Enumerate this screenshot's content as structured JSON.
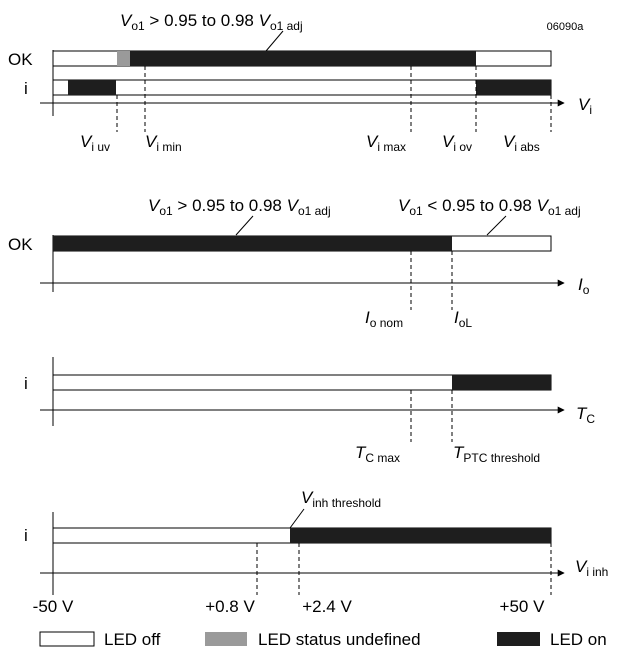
{
  "figure_id": "06090a",
  "colors": {
    "led_on": "#1e1e1e",
    "led_undefined": "#9a9a9a",
    "led_off": "#ffffff",
    "line": "#000000"
  },
  "panel1": {
    "title": {
      "main": "V",
      "s1": "o1",
      "mid": " > 0.95 to 0.98 ",
      "main2": "V",
      "s2": "o1 adj"
    },
    "row_ok": "OK",
    "row_i": "i",
    "axis": {
      "main": "V",
      "sub": "i"
    },
    "markers": [
      {
        "main": "V",
        "sub": "i uv"
      },
      {
        "main": "V",
        "sub": "i min"
      },
      {
        "main": "V",
        "sub": "i max"
      },
      {
        "main": "V",
        "sub": "i ov"
      },
      {
        "main": "V",
        "sub": "i abs"
      }
    ]
  },
  "panel2": {
    "title_left": {
      "main": "V",
      "s1": "o1",
      "mid": " > 0.95 to 0.98 ",
      "main2": "V",
      "s2": "o1 adj"
    },
    "title_right": {
      "main": "V",
      "s1": "o1",
      "mid": " < 0.95 to 0.98 ",
      "main2": "V",
      "s2": "o1 adj"
    },
    "row_ok": "OK",
    "axis": {
      "main": "I",
      "sub": "o"
    },
    "markers": [
      {
        "main": "I",
        "sub": "o nom"
      },
      {
        "main": "I",
        "sub": "oL"
      }
    ]
  },
  "panel3": {
    "row_i": "i",
    "axis": {
      "main": "T",
      "sub": "C"
    },
    "markers": [
      {
        "main": "T",
        "sub": "C max"
      },
      {
        "main": "T",
        "sub": "PTC threshold"
      }
    ]
  },
  "panel4": {
    "row_i": "i",
    "threshold": {
      "main": "V",
      "sub": "inh threshold"
    },
    "axis": {
      "main": "V",
      "sub": "i inh"
    },
    "ticks": [
      "-50 V",
      "+0.8 V",
      "+2.4 V",
      "+50 V"
    ]
  },
  "legend": {
    "off": "LED off",
    "undefined": "LED status undefined",
    "on": "LED on"
  }
}
